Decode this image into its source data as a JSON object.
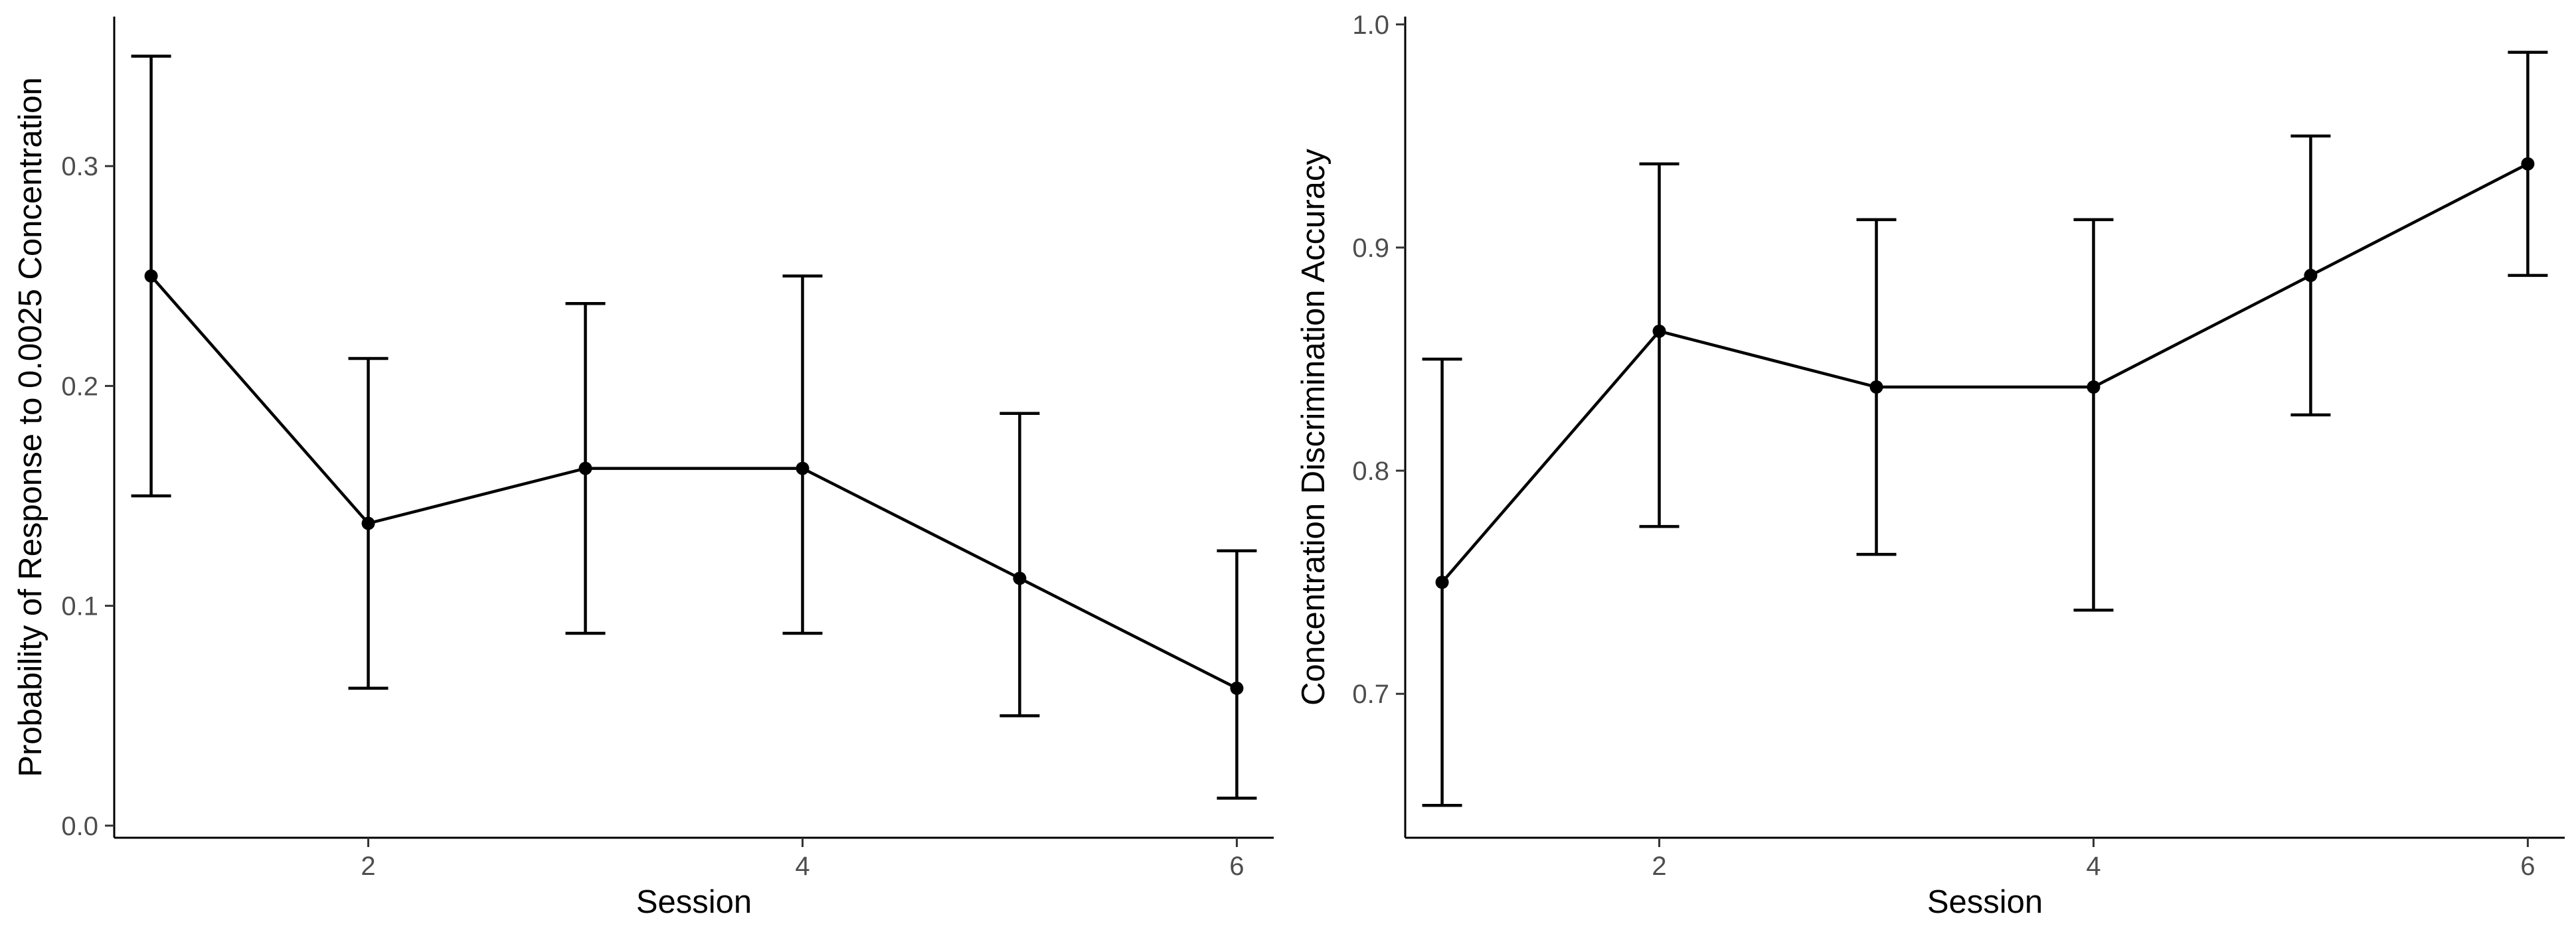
{
  "chart_data": [
    {
      "type": "line",
      "xlabel": "Session",
      "ylabel": "Probability of Response to 0.0025 Concentration",
      "x": [
        1,
        2,
        3,
        4,
        5,
        6
      ],
      "values": [
        0.25,
        0.1375,
        0.1625,
        0.1625,
        0.1125,
        0.0625
      ],
      "error_low": [
        0.15,
        0.0625,
        0.0875,
        0.0875,
        0.05,
        0.0125
      ],
      "error_high": [
        0.35,
        0.2125,
        0.2375,
        0.25,
        0.1875,
        0.125
      ],
      "xlim": [
        0.83,
        6.17
      ],
      "ylim": [
        -0.0055,
        0.368
      ],
      "xticks": [
        2,
        4,
        6
      ],
      "xtick_labels": [
        "2",
        "4",
        "6"
      ],
      "yticks": [
        0.0,
        0.1,
        0.2,
        0.3
      ],
      "ytick_labels": [
        "0.0",
        "0.1",
        "0.2",
        "0.3"
      ],
      "grid": false,
      "legend": false
    },
    {
      "type": "line",
      "xlabel": "Session",
      "ylabel": "Concentration Discrimination Accuracy",
      "x": [
        1,
        2,
        3,
        4,
        5,
        6
      ],
      "values": [
        0.75,
        0.8625,
        0.8375,
        0.8375,
        0.8875,
        0.9375
      ],
      "error_low": [
        0.65,
        0.775,
        0.7625,
        0.7375,
        0.825,
        0.8875
      ],
      "error_high": [
        0.85,
        0.9375,
        0.9125,
        0.9125,
        0.95,
        0.9875
      ],
      "xlim": [
        0.83,
        6.17
      ],
      "ylim": [
        0.6355,
        1.0035
      ],
      "xticks": [
        2,
        4,
        6
      ],
      "xtick_labels": [
        "2",
        "4",
        "6"
      ],
      "yticks": [
        0.7,
        0.8,
        0.9,
        1.0
      ],
      "ytick_labels": [
        "0.7",
        "0.8",
        "0.9",
        "1.0"
      ],
      "grid": false,
      "legend": false
    }
  ]
}
